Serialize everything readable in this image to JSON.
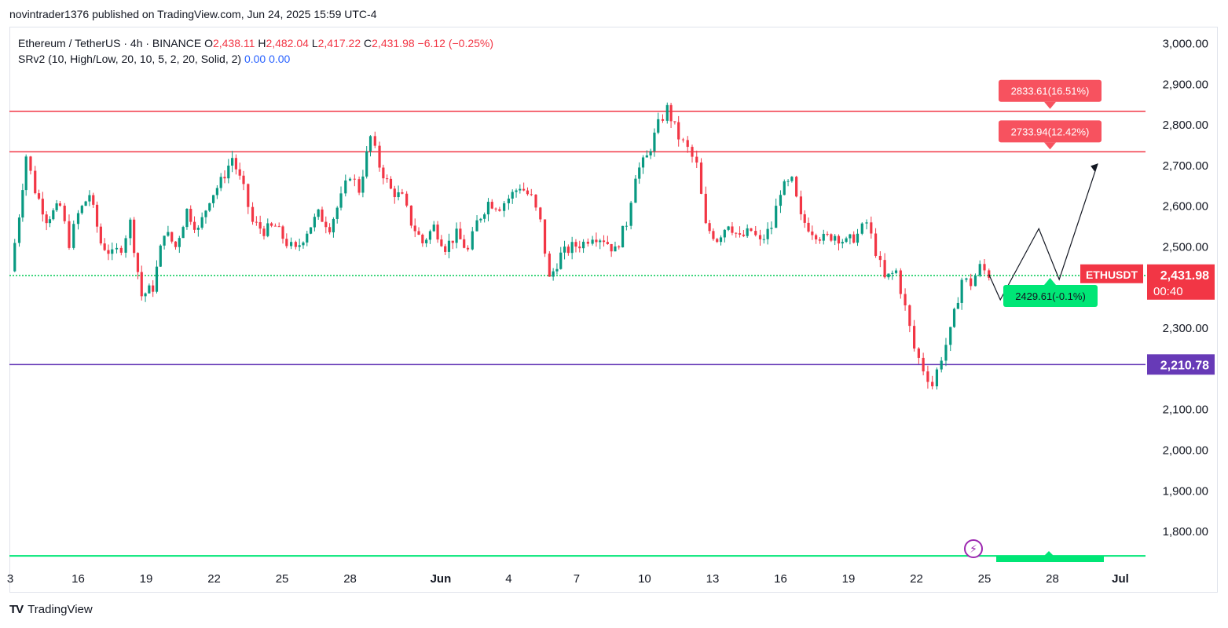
{
  "publisher_line": "novintrader1376 published on TradingView.com, Jun 24, 2025 15:59 UTC-4",
  "legend": {
    "symbol": "Ethereum / TetherUS · 4h · BINANCE",
    "o_label": "O",
    "o_value": "2,438.11",
    "h_label": "H",
    "h_value": "2,482.04",
    "l_label": "L",
    "l_value": "2,417.22",
    "c_label": "C",
    "c_value": "2,431.98",
    "change": "−6.12 (−0.25%)",
    "indicator": "SRv2 (10, High/Low, 20, 10, 5, 2, 20, Solid, 2)",
    "ind_v1": "0.00",
    "ind_v2": "0.00"
  },
  "footer": {
    "brand": "TradingView",
    "logo_mark": "TV"
  },
  "colors": {
    "up": "#089981",
    "down": "#f23645",
    "resistance": "#f23645",
    "support_green": "#00c853",
    "purple": "#673ab7",
    "price_label": "#f23645",
    "target_box": "#f7525f",
    "green_box": "#00e676",
    "grid": "#ffffff"
  },
  "icons": {
    "event": "lightning-icon"
  },
  "chart_data": {
    "type": "candlestick",
    "symbol": "ETHUSDT",
    "timeframe": "4h",
    "ylim": [
      1720,
      3060
    ],
    "y_ticks": [
      "3,000.00",
      "2,900.00",
      "2,800.00",
      "2,700.00",
      "2,600.00",
      "2,500.00",
      "2,300.00",
      "2,100.00",
      "2,000.00",
      "1,900.00",
      "1,800.00"
    ],
    "y_tick_values": [
      3000,
      2900,
      2800,
      2700,
      2600,
      2500,
      2300,
      2100,
      2000,
      1900,
      1800
    ],
    "x_ticks": [
      "3",
      "16",
      "19",
      "22",
      "25",
      "28",
      "Jun",
      "4",
      "7",
      "10",
      "13",
      "16",
      "19",
      "22",
      "25",
      "28",
      "Jul"
    ],
    "x_tick_days": [
      13,
      16,
      19,
      22,
      25,
      28,
      32,
      35,
      38,
      41,
      44,
      47,
      50,
      53,
      56,
      59,
      62
    ],
    "x_range_days": [
      13,
      63
    ],
    "horizontal_levels": [
      {
        "name": "resistance-upper",
        "price": 2833.61,
        "label": "2833.61(16.51%)",
        "color": "#f23645"
      },
      {
        "name": "resistance-lower",
        "price": 2733.94,
        "label": "2733.94(12.42%)",
        "color": "#f23645"
      },
      {
        "name": "current-support",
        "price": 2429.61,
        "label": "2429.61(-0.1%)",
        "color": "#00c853"
      },
      {
        "name": "purple-level",
        "price": 2210.78,
        "label": "2,210.78",
        "color": "#673ab7"
      },
      {
        "name": "bottom-green",
        "price": 1740,
        "label": "",
        "color": "#00e676"
      }
    ],
    "last_price": {
      "symbol_label": "ETHUSDT",
      "price": "2,431.98",
      "countdown": "00:40",
      "value": 2431.98
    },
    "projection_path": [
      [
        56.2,
        2432
      ],
      [
        56.7,
        2370
      ],
      [
        58.4,
        2545
      ],
      [
        59.3,
        2420
      ],
      [
        61.0,
        2705
      ]
    ],
    "price_path": [
      [
        13.0,
        2440
      ],
      [
        13.4,
        2580
      ],
      [
        13.7,
        2725
      ],
      [
        14.1,
        2640
      ],
      [
        14.6,
        2570
      ],
      [
        15.2,
        2600
      ],
      [
        15.6,
        2510
      ],
      [
        16.0,
        2580
      ],
      [
        16.5,
        2630
      ],
      [
        17.0,
        2510
      ],
      [
        17.5,
        2480
      ],
      [
        17.9,
        2500
      ],
      [
        18.3,
        2560
      ],
      [
        18.8,
        2380
      ],
      [
        19.3,
        2400
      ],
      [
        19.8,
        2540
      ],
      [
        20.3,
        2500
      ],
      [
        20.8,
        2590
      ],
      [
        21.3,
        2540
      ],
      [
        21.8,
        2620
      ],
      [
        22.3,
        2660
      ],
      [
        22.8,
        2720
      ],
      [
        23.3,
        2640
      ],
      [
        23.7,
        2560
      ],
      [
        24.2,
        2540
      ],
      [
        24.7,
        2550
      ],
      [
        25.2,
        2510
      ],
      [
        25.6,
        2490
      ],
      [
        26.1,
        2540
      ],
      [
        26.6,
        2580
      ],
      [
        27.1,
        2550
      ],
      [
        27.6,
        2620
      ],
      [
        28.0,
        2680
      ],
      [
        28.4,
        2640
      ],
      [
        28.9,
        2770
      ],
      [
        29.3,
        2700
      ],
      [
        29.8,
        2640
      ],
      [
        30.3,
        2620
      ],
      [
        30.7,
        2560
      ],
      [
        31.2,
        2510
      ],
      [
        31.7,
        2550
      ],
      [
        32.2,
        2500
      ],
      [
        32.7,
        2530
      ],
      [
        33.2,
        2490
      ],
      [
        33.6,
        2560
      ],
      [
        34.1,
        2610
      ],
      [
        34.6,
        2600
      ],
      [
        35.0,
        2620
      ],
      [
        35.5,
        2650
      ],
      [
        36.0,
        2620
      ],
      [
        36.4,
        2560
      ],
      [
        36.8,
        2420
      ],
      [
        37.3,
        2480
      ],
      [
        37.8,
        2500
      ],
      [
        38.3,
        2510
      ],
      [
        38.7,
        2530
      ],
      [
        39.2,
        2520
      ],
      [
        39.7,
        2490
      ],
      [
        40.2,
        2560
      ],
      [
        40.6,
        2680
      ],
      [
        41.1,
        2720
      ],
      [
        41.6,
        2800
      ],
      [
        42.0,
        2840
      ],
      [
        42.5,
        2770
      ],
      [
        42.9,
        2740
      ],
      [
        43.3,
        2700
      ],
      [
        43.7,
        2550
      ],
      [
        44.2,
        2520
      ],
      [
        44.7,
        2560
      ],
      [
        45.2,
        2520
      ],
      [
        45.7,
        2540
      ],
      [
        46.1,
        2510
      ],
      [
        46.6,
        2550
      ],
      [
        47.0,
        2640
      ],
      [
        47.5,
        2660
      ],
      [
        47.9,
        2570
      ],
      [
        48.4,
        2540
      ],
      [
        48.9,
        2520
      ],
      [
        49.4,
        2530
      ],
      [
        49.9,
        2510
      ],
      [
        50.4,
        2530
      ],
      [
        50.8,
        2560
      ],
      [
        51.2,
        2490
      ],
      [
        51.6,
        2420
      ],
      [
        52.1,
        2440
      ],
      [
        52.5,
        2350
      ],
      [
        52.9,
        2250
      ],
      [
        53.3,
        2200
      ],
      [
        53.7,
        2160
      ],
      [
        54.1,
        2230
      ],
      [
        54.5,
        2290
      ],
      [
        55.0,
        2420
      ],
      [
        55.4,
        2410
      ],
      [
        55.8,
        2450
      ],
      [
        56.2,
        2432
      ]
    ]
  }
}
